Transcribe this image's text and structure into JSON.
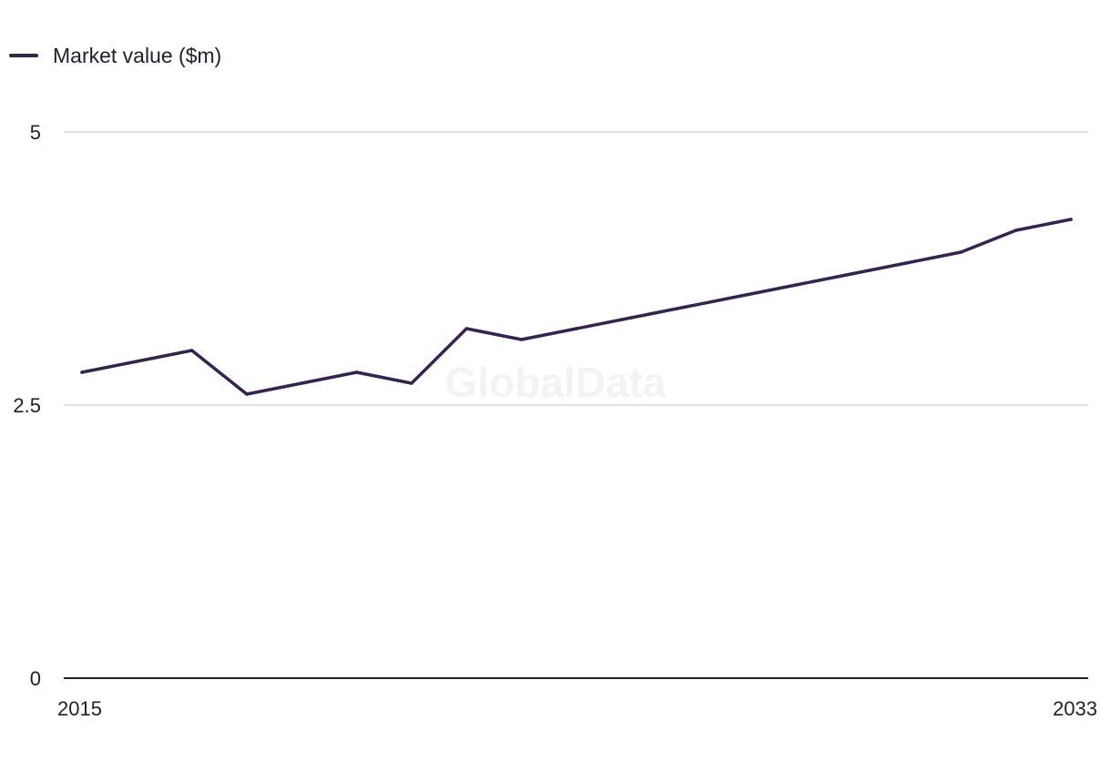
{
  "legend": {
    "label": "Market value ($m)",
    "color": "#36234f"
  },
  "watermark": "GlobalData",
  "colors": {
    "series": "#36234f",
    "grid": "#d5d5d8",
    "axis": "#1f1f2e"
  },
  "chart_data": {
    "type": "line",
    "title": "",
    "xlabel": "",
    "ylabel": "",
    "xlim": [
      2015,
      2033
    ],
    "ylim": [
      0,
      5
    ],
    "x_tick_labels": [
      "2015",
      "2033"
    ],
    "y_ticks": [
      0,
      2.5,
      5
    ],
    "y_tick_labels": [
      "0",
      "2.5",
      "5"
    ],
    "grid": true,
    "legend_position": "top-left",
    "series": [
      {
        "name": "Market value ($m)",
        "x": [
          2015,
          2016,
          2017,
          2018,
          2019,
          2020,
          2021,
          2022,
          2023,
          2024,
          2025,
          2026,
          2027,
          2028,
          2029,
          2030,
          2031,
          2032,
          2033
        ],
        "values": [
          2.8,
          2.9,
          3.0,
          2.6,
          2.7,
          2.8,
          2.7,
          3.2,
          3.1,
          3.2,
          3.3,
          3.4,
          3.5,
          3.6,
          3.7,
          3.8,
          3.9,
          4.1,
          4.2
        ]
      }
    ]
  }
}
